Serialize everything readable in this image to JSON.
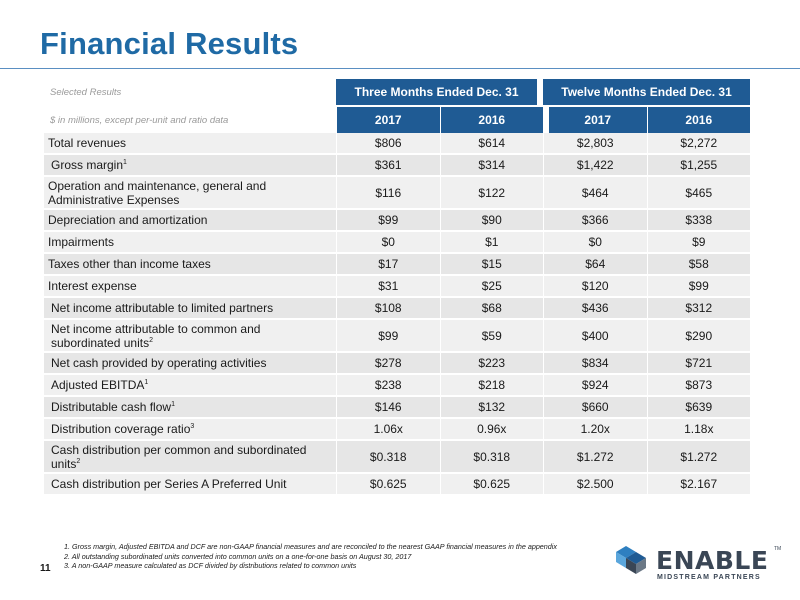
{
  "page": {
    "title": "Financial Results",
    "page_number": "11"
  },
  "table": {
    "selected_results": "Selected Results",
    "units_note": "$ in millions, except per-unit and ratio data",
    "groups": [
      "Three Months Ended Dec. 31",
      "Twelve Months Ended Dec. 31"
    ],
    "years": [
      "2017",
      "2016",
      "2017",
      "2016"
    ],
    "rows": [
      {
        "label": "Total revenues",
        "sup": "",
        "values": [
          "$806",
          "$614",
          "$2,803",
          "$2,272"
        ]
      },
      {
        "label": "Gross margin",
        "sup": "1",
        "values": [
          "$361",
          "$314",
          "$1,422",
          "$1,255"
        ]
      },
      {
        "label": "Operation and maintenance, general and Administrative Expenses",
        "sup": "",
        "values": [
          "$116",
          "$122",
          "$464",
          "$465"
        ]
      },
      {
        "label": "Depreciation and amortization",
        "sup": "",
        "values": [
          "$99",
          "$90",
          "$366",
          "$338"
        ]
      },
      {
        "label": "Impairments",
        "sup": "",
        "values": [
          "$0",
          "$1",
          "$0",
          "$9"
        ]
      },
      {
        "label": "Taxes other than income taxes",
        "sup": "",
        "values": [
          "$17",
          "$15",
          "$64",
          "$58"
        ]
      },
      {
        "label": "Interest expense",
        "sup": "",
        "values": [
          "$31",
          "$25",
          "$120",
          "$99"
        ]
      },
      {
        "label": "Net income attributable to limited partners",
        "sup": "",
        "values": [
          "$108",
          "$68",
          "$436",
          "$312"
        ]
      },
      {
        "label": "Net income attributable to common and subordinated units",
        "sup": "2",
        "values": [
          "$99",
          "$59",
          "$400",
          "$290"
        ]
      },
      {
        "label": "Net cash provided by operating activities",
        "sup": "",
        "values": [
          "$278",
          "$223",
          "$834",
          "$721"
        ]
      },
      {
        "label": "Adjusted EBITDA",
        "sup": "1",
        "values": [
          "$238",
          "$218",
          "$924",
          "$873"
        ]
      },
      {
        "label": "Distributable cash flow",
        "sup": "1",
        "values": [
          "$146",
          "$132",
          "$660",
          "$639"
        ]
      },
      {
        "label": "Distribution coverage ratio",
        "sup": "3",
        "values": [
          "1.06x",
          "0.96x",
          "1.20x",
          "1.18x"
        ]
      },
      {
        "label": "Cash distribution per common and subordinated units",
        "sup": "2",
        "values": [
          "$0.318",
          "$0.318",
          "$1.272",
          "$1.272"
        ]
      },
      {
        "label": "Cash distribution per Series A Preferred Unit",
        "sup": "",
        "values": [
          "$0.625",
          "$0.625",
          "$2.500",
          "$2.167"
        ]
      }
    ]
  },
  "footnotes": [
    "1. Gross margin, Adjusted EBITDA and DCF are non-GAAP financial measures and are reconciled to the nearest GAAP financial measures in the appendix",
    "2. All outstanding subordinated units converted into common units on a one-for-one basis on August 30, 2017",
    "3. A non-GAAP measure calculated as DCF divided by distributions related to common units"
  ],
  "logo": {
    "name": "ENABLE",
    "tagline": "MIDSTREAM PARTNERS",
    "tm": "TM"
  },
  "colors": {
    "title": "#1f6aa5",
    "header_fill": "#1f5b94",
    "row_light": "#f0f0f0",
    "row_dark": "#e6e6e6"
  }
}
